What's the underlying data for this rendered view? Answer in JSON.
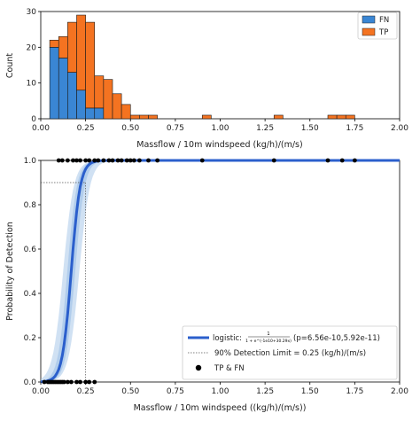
{
  "chart_data": [
    {
      "type": "bar",
      "subtype": "stacked-histogram",
      "xlabel": "Massflow / 10m windspeed (kg/h)/(m/s)",
      "ylabel": "Count",
      "xlim": [
        0,
        2
      ],
      "ylim": [
        0,
        30
      ],
      "x_ticks": [
        "0.00",
        "0.25",
        "0.50",
        "0.75",
        "1.00",
        "1.25",
        "1.50",
        "1.75",
        "2.00"
      ],
      "y_ticks": [
        "0",
        "10",
        "20",
        "30"
      ],
      "bin_width": 0.05,
      "bin_starts": [
        0.05,
        0.1,
        0.15,
        0.2,
        0.25,
        0.3,
        0.35,
        0.4,
        0.45,
        0.5,
        0.55,
        0.6,
        0.9,
        1.3,
        1.6,
        1.65,
        1.7
      ],
      "series": [
        {
          "name": "FN",
          "color": "#3a86d4",
          "values": [
            20,
            17,
            13,
            8,
            3,
            3,
            0,
            0,
            0,
            0,
            0,
            0,
            0,
            0,
            0,
            0,
            0
          ]
        },
        {
          "name": "TP",
          "color": "#f47321",
          "values": [
            2,
            6,
            14,
            21,
            24,
            9,
            11,
            7,
            4,
            1,
            1,
            1,
            1,
            1,
            1,
            1,
            1
          ]
        }
      ],
      "legend_position": "top-right"
    },
    {
      "type": "line",
      "subtype": "logistic-detection-curve",
      "xlabel": "Massflow / 10m windspeed ((kg/h)/(m/s))",
      "ylabel": "Probability of Detection",
      "xlim": [
        0,
        2
      ],
      "ylim": [
        0,
        1
      ],
      "x_ticks": [
        "0.00",
        "0.25",
        "0.50",
        "0.75",
        "1.00",
        "1.25",
        "1.50",
        "1.75",
        "2.00"
      ],
      "y_ticks": [
        "0.0",
        "0.2",
        "0.4",
        "0.6",
        "0.8",
        "1.0"
      ],
      "logistic": {
        "midpoint": 0.17,
        "slope": 40
      },
      "detection_limit": {
        "x": 0.25,
        "y": 0.9
      },
      "points_at_0": [
        0.02,
        0.04,
        0.05,
        0.06,
        0.07,
        0.08,
        0.09,
        0.1,
        0.11,
        0.12,
        0.13,
        0.15,
        0.17,
        0.2,
        0.22,
        0.25,
        0.27,
        0.3
      ],
      "points_at_1": [
        0.1,
        0.12,
        0.15,
        0.18,
        0.2,
        0.22,
        0.25,
        0.27,
        0.3,
        0.32,
        0.35,
        0.38,
        0.4,
        0.43,
        0.45,
        0.48,
        0.5,
        0.52,
        0.55,
        0.6,
        0.65,
        0.9,
        1.3,
        1.6,
        1.68,
        1.75
      ],
      "legend_position": "lower-right",
      "colors": {
        "curve": "#2b5fcc",
        "band": "#a9c8ea",
        "points": "#000000",
        "limit": "#555555"
      }
    }
  ],
  "legend": {
    "fn": "FN",
    "tp": "TP",
    "logistic_prefix": "logistic:",
    "logistic_formula_num": "1",
    "logistic_formula_den": "1 + e^(-1e10+30.29x)",
    "logistic_params": "(p=6.56e-10,5.92e-11)",
    "detection_limit": "90% Detection Limit = 0.25 (kg/h)/(m/s)",
    "points": "TP & FN"
  }
}
